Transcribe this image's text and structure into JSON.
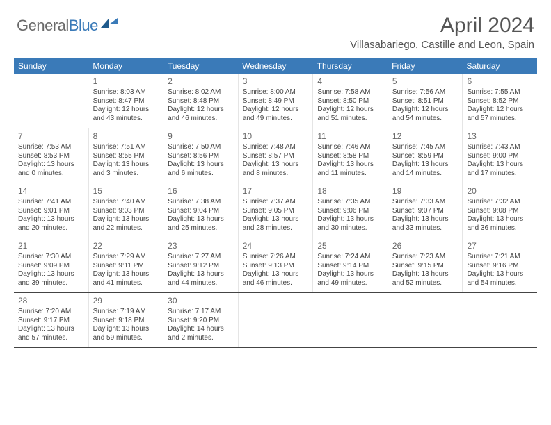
{
  "logo": {
    "text_general": "General",
    "text_blue": "Blue"
  },
  "title": "April 2024",
  "subtitle": "Villasabariego, Castille and Leon, Spain",
  "colors": {
    "header_bg": "#3a7ab8",
    "header_fg": "#ffffff",
    "row_border": "#444444",
    "cell_border": "#e5e5e5",
    "text": "#444444",
    "title_color": "#555555",
    "logo_gray": "#6a6a6a",
    "logo_blue": "#3a7ab8"
  },
  "days_of_week": [
    "Sunday",
    "Monday",
    "Tuesday",
    "Wednesday",
    "Thursday",
    "Friday",
    "Saturday"
  ],
  "weeks": [
    [
      null,
      {
        "n": "1",
        "sr": "Sunrise: 8:03 AM",
        "ss": "Sunset: 8:47 PM",
        "d1": "Daylight: 12 hours",
        "d2": "and 43 minutes."
      },
      {
        "n": "2",
        "sr": "Sunrise: 8:02 AM",
        "ss": "Sunset: 8:48 PM",
        "d1": "Daylight: 12 hours",
        "d2": "and 46 minutes."
      },
      {
        "n": "3",
        "sr": "Sunrise: 8:00 AM",
        "ss": "Sunset: 8:49 PM",
        "d1": "Daylight: 12 hours",
        "d2": "and 49 minutes."
      },
      {
        "n": "4",
        "sr": "Sunrise: 7:58 AM",
        "ss": "Sunset: 8:50 PM",
        "d1": "Daylight: 12 hours",
        "d2": "and 51 minutes."
      },
      {
        "n": "5",
        "sr": "Sunrise: 7:56 AM",
        "ss": "Sunset: 8:51 PM",
        "d1": "Daylight: 12 hours",
        "d2": "and 54 minutes."
      },
      {
        "n": "6",
        "sr": "Sunrise: 7:55 AM",
        "ss": "Sunset: 8:52 PM",
        "d1": "Daylight: 12 hours",
        "d2": "and 57 minutes."
      }
    ],
    [
      {
        "n": "7",
        "sr": "Sunrise: 7:53 AM",
        "ss": "Sunset: 8:53 PM",
        "d1": "Daylight: 13 hours",
        "d2": "and 0 minutes."
      },
      {
        "n": "8",
        "sr": "Sunrise: 7:51 AM",
        "ss": "Sunset: 8:55 PM",
        "d1": "Daylight: 13 hours",
        "d2": "and 3 minutes."
      },
      {
        "n": "9",
        "sr": "Sunrise: 7:50 AM",
        "ss": "Sunset: 8:56 PM",
        "d1": "Daylight: 13 hours",
        "d2": "and 6 minutes."
      },
      {
        "n": "10",
        "sr": "Sunrise: 7:48 AM",
        "ss": "Sunset: 8:57 PM",
        "d1": "Daylight: 13 hours",
        "d2": "and 8 minutes."
      },
      {
        "n": "11",
        "sr": "Sunrise: 7:46 AM",
        "ss": "Sunset: 8:58 PM",
        "d1": "Daylight: 13 hours",
        "d2": "and 11 minutes."
      },
      {
        "n": "12",
        "sr": "Sunrise: 7:45 AM",
        "ss": "Sunset: 8:59 PM",
        "d1": "Daylight: 13 hours",
        "d2": "and 14 minutes."
      },
      {
        "n": "13",
        "sr": "Sunrise: 7:43 AM",
        "ss": "Sunset: 9:00 PM",
        "d1": "Daylight: 13 hours",
        "d2": "and 17 minutes."
      }
    ],
    [
      {
        "n": "14",
        "sr": "Sunrise: 7:41 AM",
        "ss": "Sunset: 9:01 PM",
        "d1": "Daylight: 13 hours",
        "d2": "and 20 minutes."
      },
      {
        "n": "15",
        "sr": "Sunrise: 7:40 AM",
        "ss": "Sunset: 9:03 PM",
        "d1": "Daylight: 13 hours",
        "d2": "and 22 minutes."
      },
      {
        "n": "16",
        "sr": "Sunrise: 7:38 AM",
        "ss": "Sunset: 9:04 PM",
        "d1": "Daylight: 13 hours",
        "d2": "and 25 minutes."
      },
      {
        "n": "17",
        "sr": "Sunrise: 7:37 AM",
        "ss": "Sunset: 9:05 PM",
        "d1": "Daylight: 13 hours",
        "d2": "and 28 minutes."
      },
      {
        "n": "18",
        "sr": "Sunrise: 7:35 AM",
        "ss": "Sunset: 9:06 PM",
        "d1": "Daylight: 13 hours",
        "d2": "and 30 minutes."
      },
      {
        "n": "19",
        "sr": "Sunrise: 7:33 AM",
        "ss": "Sunset: 9:07 PM",
        "d1": "Daylight: 13 hours",
        "d2": "and 33 minutes."
      },
      {
        "n": "20",
        "sr": "Sunrise: 7:32 AM",
        "ss": "Sunset: 9:08 PM",
        "d1": "Daylight: 13 hours",
        "d2": "and 36 minutes."
      }
    ],
    [
      {
        "n": "21",
        "sr": "Sunrise: 7:30 AM",
        "ss": "Sunset: 9:09 PM",
        "d1": "Daylight: 13 hours",
        "d2": "and 39 minutes."
      },
      {
        "n": "22",
        "sr": "Sunrise: 7:29 AM",
        "ss": "Sunset: 9:11 PM",
        "d1": "Daylight: 13 hours",
        "d2": "and 41 minutes."
      },
      {
        "n": "23",
        "sr": "Sunrise: 7:27 AM",
        "ss": "Sunset: 9:12 PM",
        "d1": "Daylight: 13 hours",
        "d2": "and 44 minutes."
      },
      {
        "n": "24",
        "sr": "Sunrise: 7:26 AM",
        "ss": "Sunset: 9:13 PM",
        "d1": "Daylight: 13 hours",
        "d2": "and 46 minutes."
      },
      {
        "n": "25",
        "sr": "Sunrise: 7:24 AM",
        "ss": "Sunset: 9:14 PM",
        "d1": "Daylight: 13 hours",
        "d2": "and 49 minutes."
      },
      {
        "n": "26",
        "sr": "Sunrise: 7:23 AM",
        "ss": "Sunset: 9:15 PM",
        "d1": "Daylight: 13 hours",
        "d2": "and 52 minutes."
      },
      {
        "n": "27",
        "sr": "Sunrise: 7:21 AM",
        "ss": "Sunset: 9:16 PM",
        "d1": "Daylight: 13 hours",
        "d2": "and 54 minutes."
      }
    ],
    [
      {
        "n": "28",
        "sr": "Sunrise: 7:20 AM",
        "ss": "Sunset: 9:17 PM",
        "d1": "Daylight: 13 hours",
        "d2": "and 57 minutes."
      },
      {
        "n": "29",
        "sr": "Sunrise: 7:19 AM",
        "ss": "Sunset: 9:18 PM",
        "d1": "Daylight: 13 hours",
        "d2": "and 59 minutes."
      },
      {
        "n": "30",
        "sr": "Sunrise: 7:17 AM",
        "ss": "Sunset: 9:20 PM",
        "d1": "Daylight: 14 hours",
        "d2": "and 2 minutes."
      },
      null,
      null,
      null,
      null
    ]
  ]
}
